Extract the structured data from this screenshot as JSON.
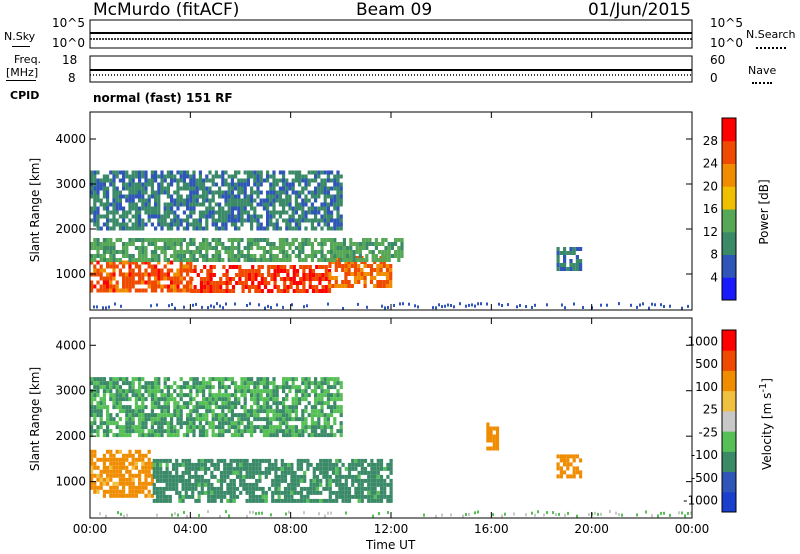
{
  "header": {
    "station": "McMurdo (fitACF)",
    "beam": "Beam 09",
    "date": "01/Jun/2015"
  },
  "noise_panel": {
    "left_label": "N.Sky",
    "right_label": "N.Search",
    "left_ticks": [
      "10^5",
      "10^0"
    ],
    "right_ticks": [
      "10^5",
      "10^0"
    ]
  },
  "freq_panel": {
    "left_label_1": "Freq.",
    "left_label_2": "[MHz]",
    "right_label": "Nave",
    "left_ticks": [
      "18",
      "8"
    ],
    "right_ticks": [
      "60",
      "0"
    ]
  },
  "cpid": {
    "label": "CPID",
    "mode": "normal (fast) 151 RF"
  },
  "chart_data": [
    {
      "type": "heatmap",
      "title": "",
      "xlabel": "Time UT",
      "ylabel": "Slant Range [km]",
      "x_ticks": [
        "00:00",
        "04:00",
        "08:00",
        "12:00",
        "16:00",
        "20:00",
        "00:00"
      ],
      "y_ticks": [
        "1000",
        "2000",
        "3000",
        "4000"
      ],
      "colorbar": {
        "label": "Power [dB]",
        "ticks": [
          "4",
          "8",
          "12",
          "16",
          "20",
          "24",
          "28"
        ],
        "colors": [
          "#1a1aff",
          "#2f55b8",
          "#3a8a68",
          "#56a856",
          "#f0c000",
          "#f08c00",
          "#f04a00",
          "#ff0000"
        ]
      },
      "bands": [
        {
          "from": 0.0,
          "to": 4.0,
          "lo": 600,
          "hi": 1300,
          "v": 26
        },
        {
          "from": 4.0,
          "to": 9.5,
          "lo": 650,
          "hi": 1200,
          "v": 27
        },
        {
          "from": 9.5,
          "to": 12.0,
          "lo": 700,
          "hi": 1400,
          "v": 25
        },
        {
          "from": 0.0,
          "to": 12.5,
          "lo": 1300,
          "hi": 1800,
          "v": 13
        },
        {
          "from": 0.0,
          "to": 10.0,
          "lo": 2000,
          "hi": 3300,
          "v": 9
        },
        {
          "from": 18.6,
          "to": 19.6,
          "lo": 1100,
          "hi": 1600,
          "v": 9
        }
      ]
    },
    {
      "type": "heatmap",
      "title": "",
      "xlabel": "Time UT",
      "ylabel": "Slant Range [km]",
      "x_ticks": [
        "00:00",
        "04:00",
        "08:00",
        "12:00",
        "16:00",
        "20:00",
        "00:00"
      ],
      "y_ticks": [
        "1000",
        "2000",
        "3000",
        "4000"
      ],
      "colorbar": {
        "label": "Velocity [m s^-1]",
        "ticks": [
          "1000",
          "500",
          "100",
          "25",
          "-25",
          "-100",
          "-500",
          "-1000"
        ],
        "colors": [
          "#1a3fcc",
          "#2f55b8",
          "#3a8a68",
          "#56c056",
          "#c8c8c8",
          "#f0c040",
          "#f08c00",
          "#f04a00",
          "#ff0000"
        ]
      },
      "bands": [
        {
          "from": 0.0,
          "to": 2.5,
          "lo": 700,
          "hi": 1700,
          "v": -150
        },
        {
          "from": 2.5,
          "to": 12.0,
          "lo": 600,
          "hi": 1500,
          "v": 150
        },
        {
          "from": 0.0,
          "to": 10.0,
          "lo": 2000,
          "hi": 3300,
          "v": 100
        },
        {
          "from": 18.6,
          "to": 19.6,
          "lo": 1100,
          "hi": 1600,
          "v": -300
        },
        {
          "from": 15.8,
          "to": 16.3,
          "lo": 1700,
          "hi": 2300,
          "v": -200
        }
      ]
    }
  ]
}
